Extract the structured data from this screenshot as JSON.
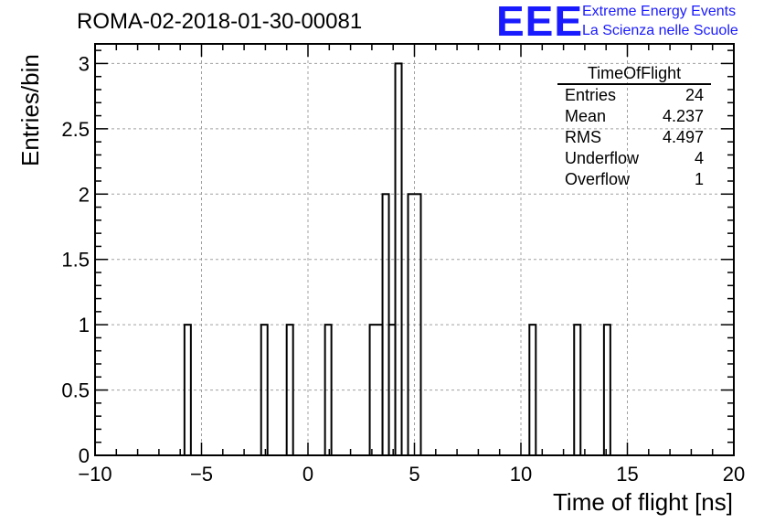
{
  "title": "ROMA-02-2018-01-30-00081",
  "logo": {
    "mark": "EEE",
    "line1": "Extreme Energy Events",
    "line2": "La Scienza nelle Scuole",
    "color": "#1a1aff"
  },
  "stats_box": {
    "title": "TimeOfFlight",
    "rows": [
      {
        "label": "Entries",
        "value": "24"
      },
      {
        "label": "Mean",
        "value": "4.237"
      },
      {
        "label": "RMS",
        "value": "4.497"
      },
      {
        "label": "Underflow",
        "value": "4"
      },
      {
        "label": "Overflow",
        "value": "1"
      }
    ]
  },
  "chart_data": {
    "type": "bar",
    "histogram": true,
    "xlabel": "Time of flight [ns]",
    "ylabel": "Entries/bin",
    "xlim": [
      -10,
      20
    ],
    "ylim": [
      0,
      3.15
    ],
    "x_ticks": [
      -10,
      -5,
      0,
      5,
      10,
      15,
      20
    ],
    "x_tick_labels": [
      "−10",
      "−5",
      "0",
      "5",
      "10",
      "15",
      "20"
    ],
    "y_ticks": [
      0,
      0.5,
      1,
      1.5,
      2,
      2.5,
      3
    ],
    "y_tick_labels": [
      "0",
      "0.5",
      "1",
      "1.5",
      "2",
      "2.5",
      "3"
    ],
    "bin_width": 0.3,
    "grid": true,
    "bins": [
      {
        "x0": -5.8,
        "x1": -5.5,
        "value": 1
      },
      {
        "x0": -2.2,
        "x1": -1.9,
        "value": 1
      },
      {
        "x0": -1.0,
        "x1": -0.7,
        "value": 1
      },
      {
        "x0": 0.8,
        "x1": 1.1,
        "value": 1
      },
      {
        "x0": 2.9,
        "x1": 3.5,
        "value": 1
      },
      {
        "x0": 3.5,
        "x1": 3.8,
        "value": 2
      },
      {
        "x0": 3.8,
        "x1": 4.1,
        "value": 1
      },
      {
        "x0": 4.1,
        "x1": 4.4,
        "value": 3
      },
      {
        "x0": 4.7,
        "x1": 5.3,
        "value": 2
      },
      {
        "x0": 10.4,
        "x1": 10.7,
        "value": 1
      },
      {
        "x0": 12.5,
        "x1": 12.8,
        "value": 1
      },
      {
        "x0": 13.9,
        "x1": 14.2,
        "value": 1
      }
    ]
  }
}
